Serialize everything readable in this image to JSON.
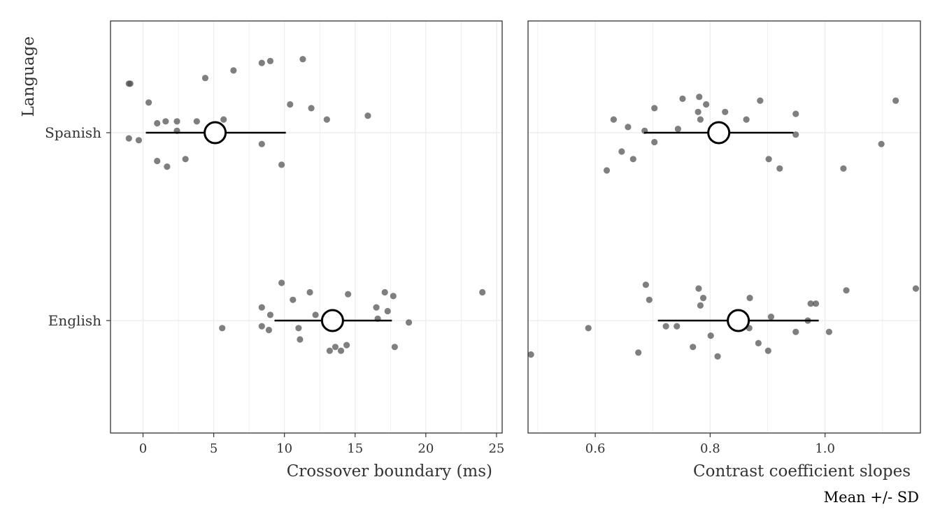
{
  "caption": "Mean +/- SD",
  "chart_data": [
    {
      "type": "scatter",
      "ylabel": "Language",
      "xlabel": "Crossover boundary (ms)",
      "xlim": [
        -2.3,
        25.4
      ],
      "xticks": [
        0,
        5,
        10,
        15,
        20,
        25
      ],
      "categories": [
        "Spanish",
        "English"
      ],
      "grid": true,
      "points": [
        {
          "language": "Spanish",
          "x": -1.0,
          "j": 0.26
        },
        {
          "language": "Spanish",
          "x": -0.9,
          "j": 0.26
        },
        {
          "language": "Spanish",
          "x": 0.4,
          "j": 0.16
        },
        {
          "language": "Spanish",
          "x": 1.0,
          "j": 0.05
        },
        {
          "language": "Spanish",
          "x": 1.6,
          "j": 0.06
        },
        {
          "language": "Spanish",
          "x": 2.4,
          "j": 0.06
        },
        {
          "language": "Spanish",
          "x": 2.4,
          "j": 0.01
        },
        {
          "language": "Spanish",
          "x": 3.8,
          "j": 0.06
        },
        {
          "language": "Spanish",
          "x": 4.4,
          "j": 0.29
        },
        {
          "language": "Spanish",
          "x": 5.7,
          "j": 0.07
        },
        {
          "language": "Spanish",
          "x": 6.4,
          "j": 0.33
        },
        {
          "language": "Spanish",
          "x": 8.4,
          "j": 0.37
        },
        {
          "language": "Spanish",
          "x": 9.0,
          "j": 0.38
        },
        {
          "language": "Spanish",
          "x": 11.3,
          "j": 0.39
        },
        {
          "language": "Spanish",
          "x": 10.4,
          "j": 0.15
        },
        {
          "language": "Spanish",
          "x": 11.9,
          "j": 0.13
        },
        {
          "language": "Spanish",
          "x": 13.0,
          "j": 0.07
        },
        {
          "language": "Spanish",
          "x": 15.9,
          "j": 0.09
        },
        {
          "language": "Spanish",
          "x": -1.0,
          "j": -0.03
        },
        {
          "language": "Spanish",
          "x": -0.3,
          "j": -0.04
        },
        {
          "language": "Spanish",
          "x": 1.0,
          "j": -0.15
        },
        {
          "language": "Spanish",
          "x": 1.7,
          "j": -0.18
        },
        {
          "language": "Spanish",
          "x": 3.0,
          "j": -0.14
        },
        {
          "language": "Spanish",
          "x": 8.4,
          "j": -0.06
        },
        {
          "language": "Spanish",
          "x": 9.8,
          "j": -0.17
        },
        {
          "language": "English",
          "x": 9.8,
          "j": 0.2
        },
        {
          "language": "English",
          "x": 11.8,
          "j": 0.15
        },
        {
          "language": "English",
          "x": 10.6,
          "j": 0.11
        },
        {
          "language": "English",
          "x": 8.4,
          "j": 0.07
        },
        {
          "language": "English",
          "x": 9.0,
          "j": 0.03
        },
        {
          "language": "English",
          "x": 12.2,
          "j": 0.03
        },
        {
          "language": "English",
          "x": 14.5,
          "j": 0.14
        },
        {
          "language": "English",
          "x": 17.1,
          "j": 0.15
        },
        {
          "language": "English",
          "x": 17.7,
          "j": 0.13
        },
        {
          "language": "English",
          "x": 16.5,
          "j": 0.07
        },
        {
          "language": "English",
          "x": 17.3,
          "j": 0.05
        },
        {
          "language": "English",
          "x": 16.6,
          "j": 0.01
        },
        {
          "language": "English",
          "x": 18.8,
          "j": -0.01
        },
        {
          "language": "English",
          "x": 24.0,
          "j": 0.15
        },
        {
          "language": "English",
          "x": 5.6,
          "j": -0.04
        },
        {
          "language": "English",
          "x": 8.4,
          "j": -0.03
        },
        {
          "language": "English",
          "x": 8.9,
          "j": -0.05
        },
        {
          "language": "English",
          "x": 11.0,
          "j": -0.04
        },
        {
          "language": "English",
          "x": 11.1,
          "j": -0.1
        },
        {
          "language": "English",
          "x": 13.2,
          "j": -0.16
        },
        {
          "language": "English",
          "x": 13.6,
          "j": -0.14
        },
        {
          "language": "English",
          "x": 14.0,
          "j": -0.16
        },
        {
          "language": "English",
          "x": 14.4,
          "j": -0.13
        },
        {
          "language": "English",
          "x": 17.8,
          "j": -0.14
        }
      ],
      "summary": [
        {
          "language": "Spanish",
          "mean": 5.1,
          "sd_low": 0.2,
          "sd_high": 10.1
        },
        {
          "language": "English",
          "mean": 13.4,
          "sd_low": 9.3,
          "sd_high": 17.6
        }
      ]
    },
    {
      "type": "scatter",
      "ylabel": "",
      "xlabel": "Contrast coefficient slopes",
      "xlim": [
        0.483,
        1.166
      ],
      "xticks": [
        0.6,
        0.8,
        1.0
      ],
      "xtick_labels": [
        "0.6",
        "0.8",
        "1.0"
      ],
      "categories": [
        "Spanish",
        "English"
      ],
      "grid": true,
      "points": [
        {
          "language": "Spanish",
          "x": 0.632,
          "j": 0.07
        },
        {
          "language": "Spanish",
          "x": 0.657,
          "j": 0.03
        },
        {
          "language": "Spanish",
          "x": 0.703,
          "j": 0.13
        },
        {
          "language": "Spanish",
          "x": 0.752,
          "j": 0.18
        },
        {
          "language": "Spanish",
          "x": 0.781,
          "j": 0.19
        },
        {
          "language": "Spanish",
          "x": 0.779,
          "j": 0.11
        },
        {
          "language": "Spanish",
          "x": 0.793,
          "j": 0.15
        },
        {
          "language": "Spanish",
          "x": 0.783,
          "j": 0.07
        },
        {
          "language": "Spanish",
          "x": 0.826,
          "j": 0.11
        },
        {
          "language": "Spanish",
          "x": 0.863,
          "j": 0.07
        },
        {
          "language": "Spanish",
          "x": 0.887,
          "j": 0.17
        },
        {
          "language": "Spanish",
          "x": 0.949,
          "j": 0.1
        },
        {
          "language": "Spanish",
          "x": 0.686,
          "j": 0.01
        },
        {
          "language": "Spanish",
          "x": 0.744,
          "j": 0.02
        },
        {
          "language": "Spanish",
          "x": 0.949,
          "j": -0.01
        },
        {
          "language": "Spanish",
          "x": 1.123,
          "j": 0.17
        },
        {
          "language": "Spanish",
          "x": 0.703,
          "j": -0.05
        },
        {
          "language": "Spanish",
          "x": 0.646,
          "j": -0.1
        },
        {
          "language": "Spanish",
          "x": 0.666,
          "j": -0.14
        },
        {
          "language": "Spanish",
          "x": 0.62,
          "j": -0.2
        },
        {
          "language": "Spanish",
          "x": 0.902,
          "j": -0.14
        },
        {
          "language": "Spanish",
          "x": 0.921,
          "j": -0.19
        },
        {
          "language": "Spanish",
          "x": 1.032,
          "j": -0.19
        },
        {
          "language": "Spanish",
          "x": 1.098,
          "j": -0.06
        },
        {
          "language": "English",
          "x": 0.688,
          "j": 0.19
        },
        {
          "language": "English",
          "x": 0.694,
          "j": 0.11
        },
        {
          "language": "English",
          "x": 0.78,
          "j": 0.17
        },
        {
          "language": "English",
          "x": 0.788,
          "j": 0.12
        },
        {
          "language": "English",
          "x": 0.783,
          "j": 0.08
        },
        {
          "language": "English",
          "x": 0.869,
          "j": 0.12
        },
        {
          "language": "English",
          "x": 0.906,
          "j": 0.02
        },
        {
          "language": "English",
          "x": 0.975,
          "j": 0.09
        },
        {
          "language": "English",
          "x": 0.984,
          "j": 0.09
        },
        {
          "language": "English",
          "x": 0.97,
          "j": 0.0
        },
        {
          "language": "English",
          "x": 1.037,
          "j": 0.16
        },
        {
          "language": "English",
          "x": 1.158,
          "j": 0.17
        },
        {
          "language": "English",
          "x": 0.588,
          "j": -0.04
        },
        {
          "language": "English",
          "x": 0.723,
          "j": -0.03
        },
        {
          "language": "English",
          "x": 0.742,
          "j": -0.03
        },
        {
          "language": "English",
          "x": 0.801,
          "j": -0.08
        },
        {
          "language": "English",
          "x": 0.868,
          "j": -0.04
        },
        {
          "language": "English",
          "x": 0.949,
          "j": -0.06
        },
        {
          "language": "English",
          "x": 1.007,
          "j": -0.06
        },
        {
          "language": "English",
          "x": 0.77,
          "j": -0.14
        },
        {
          "language": "English",
          "x": 0.884,
          "j": -0.12
        },
        {
          "language": "English",
          "x": 0.901,
          "j": -0.16
        },
        {
          "language": "English",
          "x": 0.675,
          "j": -0.17
        },
        {
          "language": "English",
          "x": 0.813,
          "j": -0.19
        },
        {
          "language": "English",
          "x": 0.488,
          "j": -0.18
        }
      ],
      "summary": [
        {
          "language": "Spanish",
          "mean": 0.815,
          "sd_low": 0.685,
          "sd_high": 0.945
        },
        {
          "language": "English",
          "mean": 0.849,
          "sd_low": 0.709,
          "sd_high": 0.989
        }
      ]
    }
  ],
  "style": {
    "point_color": "#4d4d4d",
    "grid_color": "#ebebeb",
    "frame_color": "#333333",
    "summary_color": "#000000"
  }
}
